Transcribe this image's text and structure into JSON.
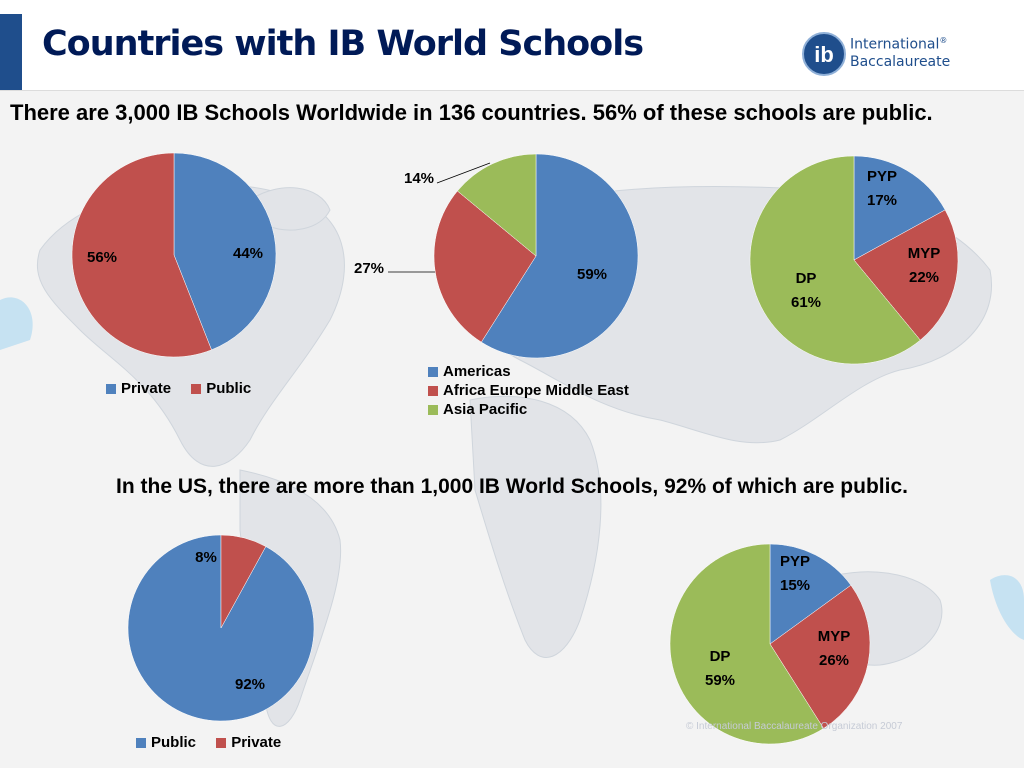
{
  "title": "Countries with IB World Schools",
  "logo": {
    "line1": "International",
    "line2": "Baccalaureate",
    "glyph": "ib",
    "mark": "®"
  },
  "statement_top": "There are 3,000 IB Schools Worldwide in 136 countries.  56% of these schools are public.",
  "statement_us": "In the US, there are more than 1,000 IB World Schools, 92% of which are public.",
  "copyright": "© International Baccalaureate Organization 2007",
  "colors": {
    "blue": "#4f81bd",
    "red": "#c0504d",
    "green": "#9bbb59",
    "title": "#001a57",
    "logo": "#1f4e8c"
  },
  "chart_data": [
    {
      "type": "pie",
      "title": "",
      "categories": [
        "Private",
        "Public"
      ],
      "values": [
        44,
        56
      ],
      "value_labels": [
        "44%",
        "56%"
      ],
      "colors": [
        "#4f81bd",
        "#c0504d"
      ],
      "legend": [
        "Private",
        "Public"
      ],
      "legend_position": "bottom"
    },
    {
      "type": "pie",
      "title": "",
      "categories": [
        "Americas",
        "Africa Europe Middle East",
        "Asia Pacific"
      ],
      "values": [
        59,
        27,
        14
      ],
      "value_labels": [
        "59%",
        "27%",
        "14%"
      ],
      "colors": [
        "#4f81bd",
        "#c0504d",
        "#9bbb59"
      ],
      "legend": [
        "Americas",
        "Africa Europe Middle East",
        "Asia Pacific"
      ],
      "legend_position": "bottom"
    },
    {
      "type": "pie",
      "title": "",
      "categories": [
        "PYP",
        "MYP",
        "DP"
      ],
      "values": [
        17,
        22,
        61
      ],
      "value_labels": [
        "17%",
        "22%",
        "61%"
      ],
      "colors": [
        "#4f81bd",
        "#c0504d",
        "#9bbb59"
      ]
    },
    {
      "type": "pie",
      "title": "",
      "categories": [
        "Public",
        "Private"
      ],
      "values": [
        92,
        8
      ],
      "value_labels": [
        "92%",
        "8%"
      ],
      "colors": [
        "#4f81bd",
        "#c0504d"
      ],
      "legend": [
        "Public",
        "Private"
      ],
      "legend_position": "bottom"
    },
    {
      "type": "pie",
      "title": "",
      "categories": [
        "PYP",
        "MYP",
        "DP"
      ],
      "values": [
        15,
        26,
        59
      ],
      "value_labels": [
        "15%",
        "26%",
        "59%"
      ],
      "colors": [
        "#4f81bd",
        "#c0504d",
        "#9bbb59"
      ]
    }
  ]
}
